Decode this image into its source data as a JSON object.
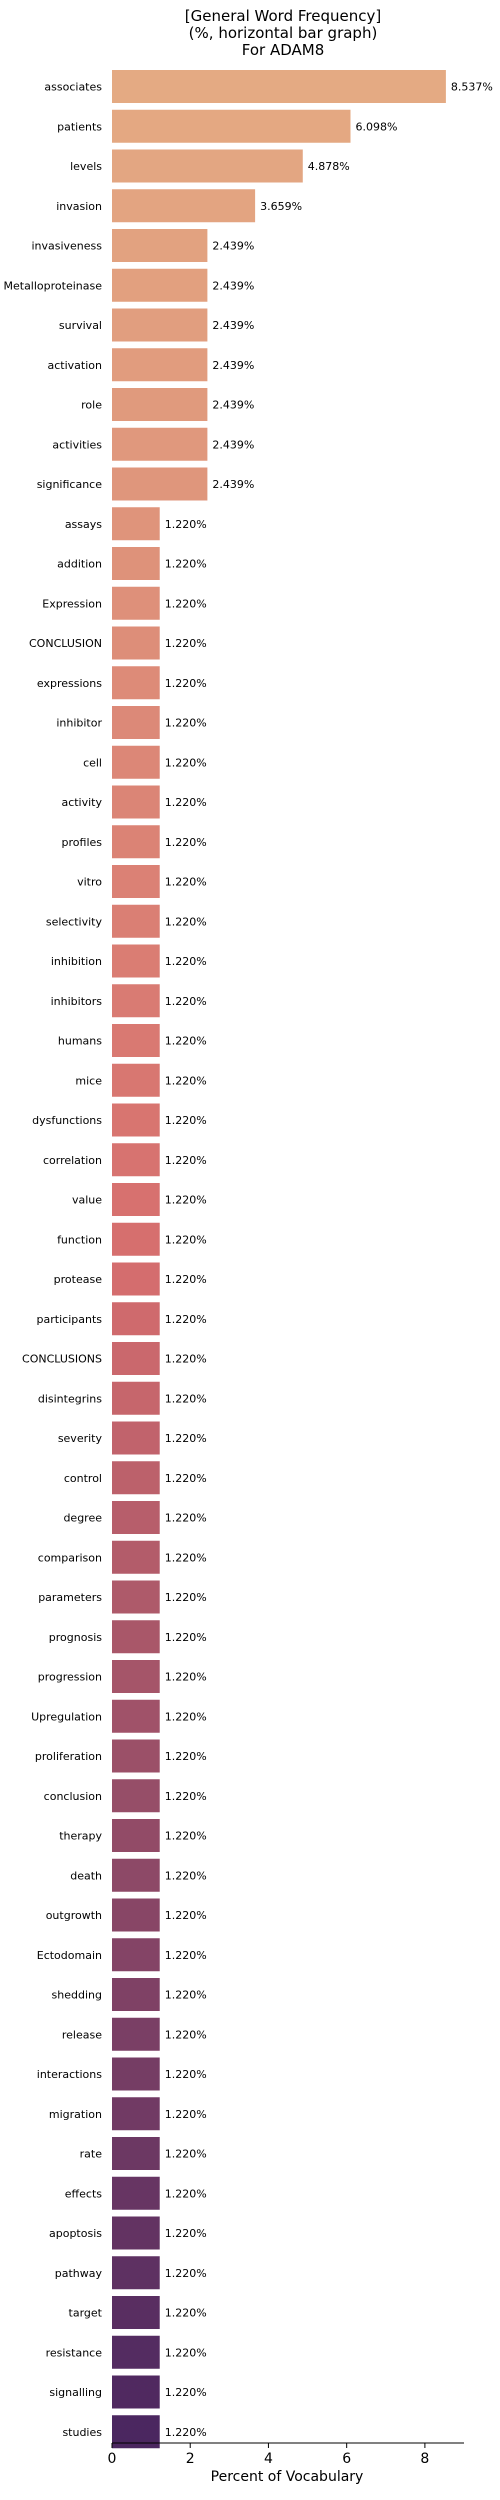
{
  "chart_data": {
    "type": "bar",
    "orientation": "horizontal",
    "title_lines": [
      "[General Word Frequency]",
      "(%, horizontal bar graph)",
      "For ADAM8"
    ],
    "xlabel": "Percent of Vocabulary",
    "ylabel": "",
    "xlim": [
      0,
      9
    ],
    "xticks": [
      0,
      2,
      4,
      6,
      8
    ],
    "grid": false,
    "color_start": "#e4aa83",
    "color_end": "#4b2760",
    "categories": [
      "associates",
      "patients",
      "levels",
      "invasion",
      "invasiveness",
      "Metalloproteinase",
      "survival",
      "activation",
      "role",
      "activities",
      "significance",
      "assays",
      "addition",
      "Expression",
      "CONCLUSION",
      "expressions",
      "inhibitor",
      "cell",
      "activity",
      "profiles",
      "vitro",
      "selectivity",
      "inhibition",
      "inhibitors",
      "humans",
      "mice",
      "dysfunctions",
      "correlation",
      "value",
      "function",
      "protease",
      "participants",
      "CONCLUSIONS",
      "disintegrins",
      "severity",
      "control",
      "degree",
      "comparison",
      "parameters",
      "prognosis",
      "progression",
      "Upregulation",
      "proliferation",
      "conclusion",
      "therapy",
      "death",
      "outgrowth",
      "Ectodomain",
      "shedding",
      "release",
      "interactions",
      "migration",
      "rate",
      "effects",
      "apoptosis",
      "pathway",
      "target",
      "resistance",
      "signalling",
      "studies"
    ],
    "values": [
      8.537,
      6.098,
      4.878,
      3.659,
      2.439,
      2.439,
      2.439,
      2.439,
      2.439,
      2.439,
      2.439,
      1.22,
      1.22,
      1.22,
      1.22,
      1.22,
      1.22,
      1.22,
      1.22,
      1.22,
      1.22,
      1.22,
      1.22,
      1.22,
      1.22,
      1.22,
      1.22,
      1.22,
      1.22,
      1.22,
      1.22,
      1.22,
      1.22,
      1.22,
      1.22,
      1.22,
      1.22,
      1.22,
      1.22,
      1.22,
      1.22,
      1.22,
      1.22,
      1.22,
      1.22,
      1.22,
      1.22,
      1.22,
      1.22,
      1.22,
      1.22,
      1.22,
      1.22,
      1.22,
      1.22,
      1.22,
      1.22,
      1.22,
      1.22,
      1.22
    ],
    "value_labels": [
      "8.537%",
      "6.098%",
      "4.878%",
      "3.659%",
      "2.439%",
      "2.439%",
      "2.439%",
      "2.439%",
      "2.439%",
      "2.439%",
      "2.439%",
      "1.220%",
      "1.220%",
      "1.220%",
      "1.220%",
      "1.220%",
      "1.220%",
      "1.220%",
      "1.220%",
      "1.220%",
      "1.220%",
      "1.220%",
      "1.220%",
      "1.220%",
      "1.220%",
      "1.220%",
      "1.220%",
      "1.220%",
      "1.220%",
      "1.220%",
      "1.220%",
      "1.220%",
      "1.220%",
      "1.220%",
      "1.220%",
      "1.220%",
      "1.220%",
      "1.220%",
      "1.220%",
      "1.220%",
      "1.220%",
      "1.220%",
      "1.220%",
      "1.220%",
      "1.220%",
      "1.220%",
      "1.220%",
      "1.220%",
      "1.220%",
      "1.220%",
      "1.220%",
      "1.220%",
      "1.220%",
      "1.220%",
      "1.220%",
      "1.220%",
      "1.220%",
      "1.220%",
      "1.220%",
      "1.220%"
    ]
  }
}
